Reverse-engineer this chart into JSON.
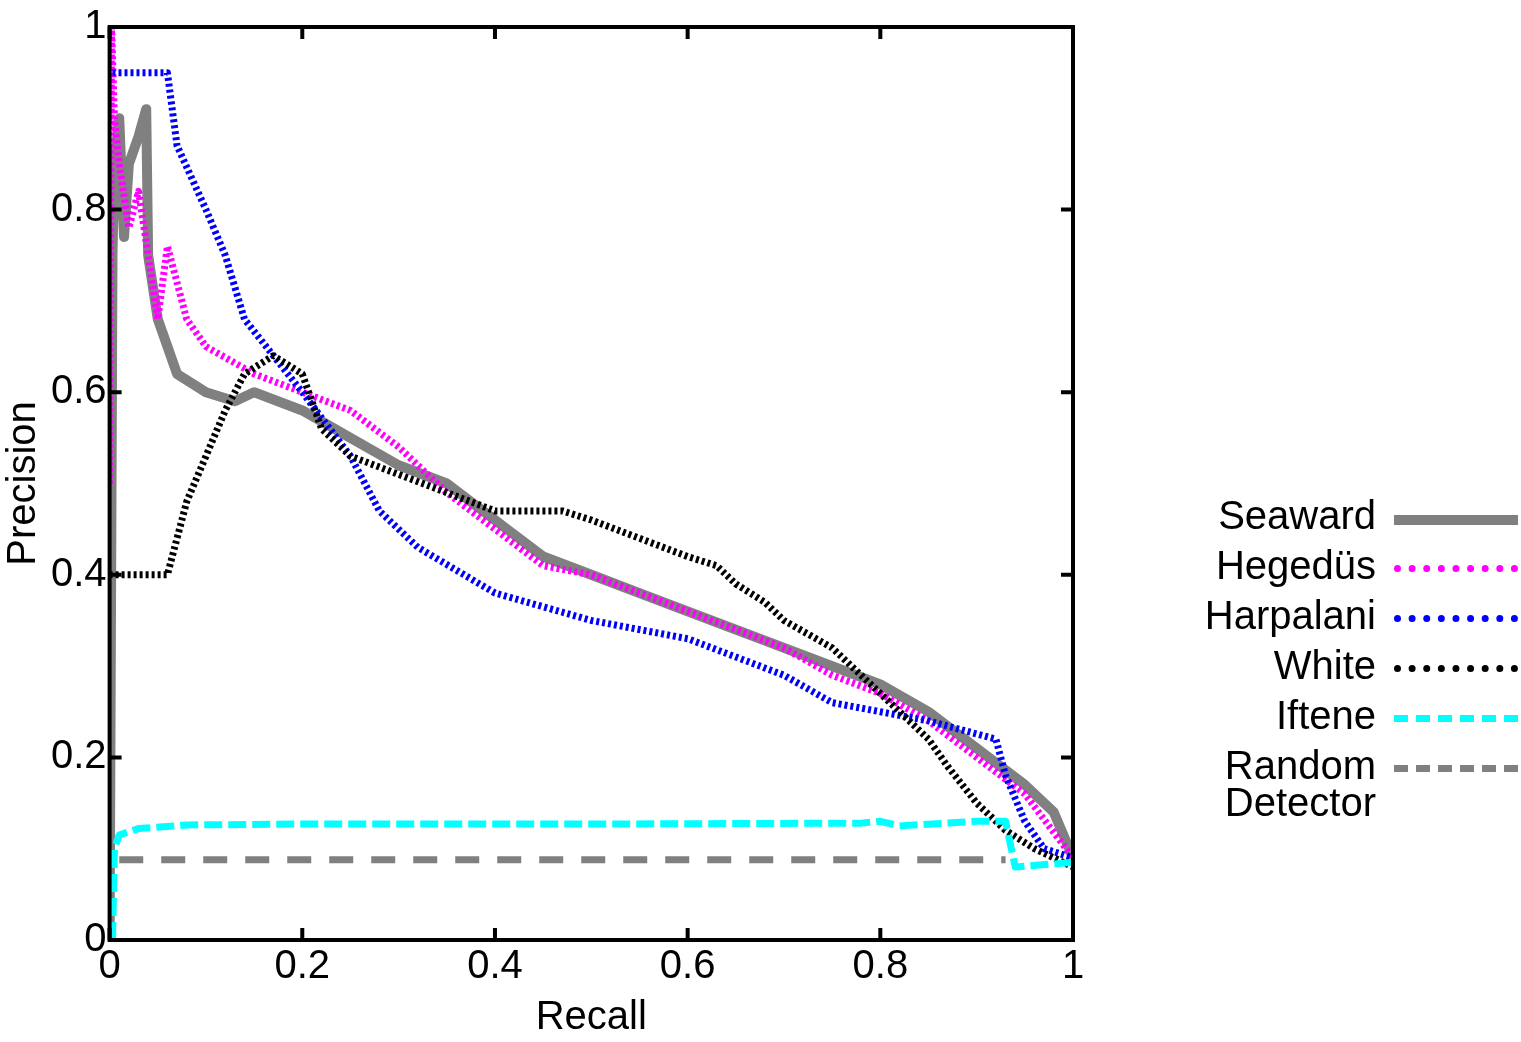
{
  "chart_data": {
    "type": "line",
    "xlabel": "Recall",
    "ylabel": "Precision",
    "xlim": [
      0,
      1
    ],
    "ylim": [
      0,
      1
    ],
    "xticks": [
      0,
      0.2,
      0.4,
      0.6,
      0.8,
      1
    ],
    "yticks": [
      0,
      0.2,
      0.4,
      0.6,
      0.8,
      1
    ],
    "legend": "right",
    "marker": "none",
    "series": [
      {
        "name": "Seaward",
        "color": "#808080",
        "line_style": "solid",
        "x": [
          0,
          0.003,
          0.005,
          0.01,
          0.015,
          0.02,
          0.03,
          0.038,
          0.04,
          0.05,
          0.07,
          0.1,
          0.13,
          0.15,
          0.2,
          0.25,
          0.3,
          0.35,
          0.4,
          0.45,
          0.5,
          0.55,
          0.6,
          0.65,
          0.7,
          0.75,
          0.8,
          0.85,
          0.9,
          0.95,
          0.98,
          1
        ],
        "values": [
          0,
          0.75,
          0.85,
          0.9,
          0.77,
          0.85,
          0.88,
          0.91,
          0.75,
          0.68,
          0.62,
          0.6,
          0.59,
          0.6,
          0.58,
          0.55,
          0.52,
          0.5,
          0.46,
          0.42,
          0.4,
          0.38,
          0.36,
          0.34,
          0.32,
          0.3,
          0.28,
          0.25,
          0.21,
          0.17,
          0.14,
          0.09
        ]
      },
      {
        "name": "Hegedüs",
        "color": "#ff00ff",
        "line_style": "dotted",
        "x": [
          0,
          0.002,
          0.005,
          0.01,
          0.02,
          0.03,
          0.05,
          0.06,
          0.08,
          0.1,
          0.15,
          0.2,
          0.25,
          0.3,
          0.35,
          0.4,
          0.45,
          0.5,
          0.55,
          0.6,
          0.65,
          0.7,
          0.75,
          0.8,
          0.85,
          0.9,
          0.95,
          1
        ],
        "values": [
          0.5,
          1,
          0.9,
          0.85,
          0.78,
          0.82,
          0.68,
          0.76,
          0.68,
          0.65,
          0.62,
          0.6,
          0.58,
          0.54,
          0.49,
          0.45,
          0.41,
          0.4,
          0.38,
          0.36,
          0.34,
          0.32,
          0.29,
          0.27,
          0.24,
          0.2,
          0.16,
          0.09
        ]
      },
      {
        "name": "Harpalani",
        "color": "#0000ff",
        "line_style": "dotted",
        "x": [
          0.003,
          0.06,
          0.07,
          0.1,
          0.12,
          0.14,
          0.17,
          0.2,
          0.25,
          0.28,
          0.32,
          0.4,
          0.5,
          0.6,
          0.65,
          0.7,
          0.75,
          0.8,
          0.85,
          0.92,
          0.93,
          0.95,
          0.97,
          1
        ],
        "values": [
          0.95,
          0.95,
          0.87,
          0.8,
          0.75,
          0.68,
          0.64,
          0.6,
          0.53,
          0.47,
          0.43,
          0.38,
          0.35,
          0.33,
          0.31,
          0.29,
          0.26,
          0.25,
          0.24,
          0.22,
          0.18,
          0.13,
          0.1,
          0.09
        ]
      },
      {
        "name": "White",
        "color": "#000000",
        "line_style": "dotted",
        "x": [
          0,
          0.06,
          0.08,
          0.1,
          0.12,
          0.14,
          0.17,
          0.2,
          0.22,
          0.25,
          0.3,
          0.35,
          0.4,
          0.47,
          0.5,
          0.55,
          0.6,
          0.63,
          0.65,
          0.68,
          0.7,
          0.75,
          0.77,
          0.8,
          0.85,
          0.87,
          0.9,
          0.93,
          0.96,
          1
        ],
        "values": [
          0.4,
          0.4,
          0.48,
          0.53,
          0.58,
          0.62,
          0.64,
          0.62,
          0.56,
          0.53,
          0.51,
          0.49,
          0.47,
          0.47,
          0.46,
          0.44,
          0.42,
          0.41,
          0.39,
          0.37,
          0.35,
          0.32,
          0.3,
          0.27,
          0.22,
          0.19,
          0.15,
          0.12,
          0.1,
          0.08
        ]
      },
      {
        "name": "Iftene",
        "color": "#00ffff",
        "line_style": "dashed",
        "x": [
          0.003,
          0.005,
          0.01,
          0.03,
          0.08,
          0.2,
          0.5,
          0.78,
          0.8,
          0.82,
          0.9,
          0.93,
          0.94,
          1
        ],
        "values": [
          0,
          0.1,
          0.115,
          0.122,
          0.126,
          0.127,
          0.127,
          0.128,
          0.13,
          0.125,
          0.13,
          0.13,
          0.08,
          0.085
        ]
      },
      {
        "name": "Random Detector",
        "color": "#808080",
        "line_style": "dashed",
        "x": [
          0.01,
          0.93
        ],
        "values": [
          0.088,
          0.088
        ]
      }
    ]
  }
}
